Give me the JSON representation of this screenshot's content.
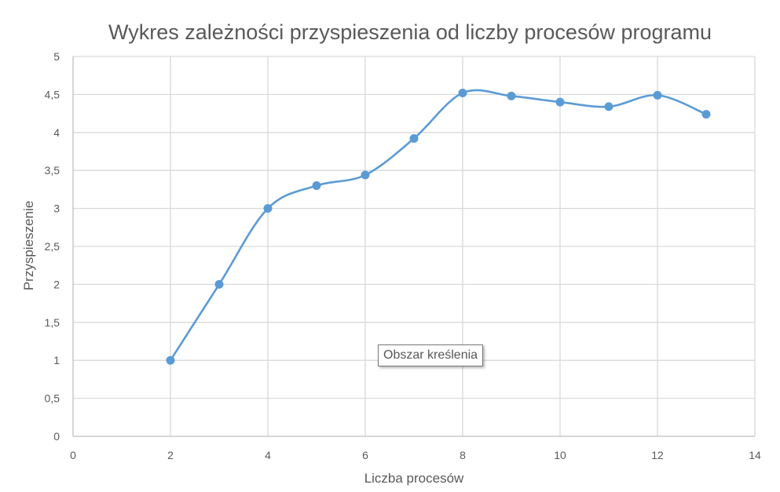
{
  "chart_data": {
    "type": "line",
    "title": "Wykres zależności przyspieszenia od liczby procesów programu",
    "xlabel": "Liczba procesów",
    "ylabel": "Przyspieszenie",
    "xlim": [
      0,
      14
    ],
    "ylim": [
      0,
      5
    ],
    "x_ticks": [
      0,
      2,
      4,
      6,
      8,
      10,
      12,
      14
    ],
    "x_tick_labels": [
      "0",
      "2",
      "4",
      "6",
      "8",
      "10",
      "12",
      "14"
    ],
    "y_ticks": [
      0,
      0.5,
      1,
      1.5,
      2,
      2.5,
      3,
      3.5,
      4,
      4.5,
      5
    ],
    "y_tick_labels": [
      "0",
      "0,5",
      "1",
      "1,5",
      "2",
      "2,5",
      "3",
      "3,5",
      "4",
      "4,5",
      "5"
    ],
    "grid": true,
    "smooth": true,
    "series": [
      {
        "x": [
          2,
          3,
          4,
          5,
          6,
          7,
          8,
          9,
          10,
          11,
          12,
          13
        ],
        "y": [
          1.0,
          2.0,
          3.0,
          3.3,
          3.44,
          3.92,
          4.52,
          4.48,
          4.4,
          4.34,
          4.49,
          4.24
        ],
        "color": "#5b9bd5"
      }
    ]
  },
  "tooltip": {
    "text": "Obszar kreślenia"
  }
}
